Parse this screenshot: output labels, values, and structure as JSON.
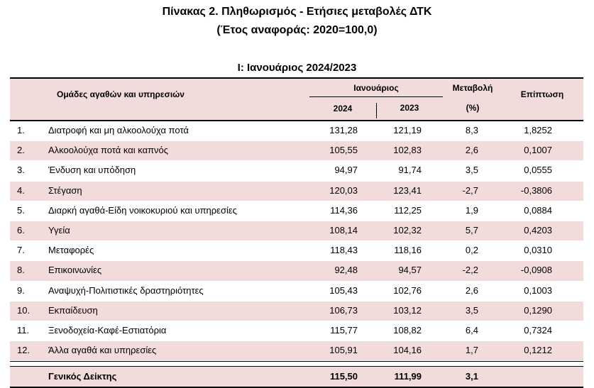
{
  "title": "Πίνακας 2. Πληθωρισμός - Ετήσιες μεταβολές ΔΤΚ",
  "subtitle": "(Έτος αναφοράς: 2020=100,0)",
  "section_title": "I: Ιανουάριος 2024/2023",
  "header": {
    "groups": "Ομάδες αγαθών και υπηρεσιών",
    "month": "Ιανουάριος",
    "year1": "2024",
    "year2": "2023",
    "change": "Μεταβολή",
    "change_unit": "(%)",
    "weight": "Επίπτωση"
  },
  "rows": [
    {
      "num": "1.",
      "name": "Διατροφή και μη αλκοολούχα ποτά",
      "v2024": "131,28",
      "v2023": "121,19",
      "change": "8,3",
      "weight": "1,8252"
    },
    {
      "num": "2.",
      "name": "Αλκοολούχα ποτά και καπνός",
      "v2024": "105,55",
      "v2023": "102,83",
      "change": "2,6",
      "weight": "0,1007"
    },
    {
      "num": "3.",
      "name": "Ένδυση και υπόδηση",
      "v2024": "94,97",
      "v2023": "91,74",
      "change": "3,5",
      "weight": "0,0555"
    },
    {
      "num": "4.",
      "name": "Στέγαση",
      "v2024": "120,03",
      "v2023": "123,41",
      "change": "-2,7",
      "weight": "-0,3806"
    },
    {
      "num": "5.",
      "name": "Διαρκή αγαθά-Είδη νοικοκυριού και υπηρεσίες",
      "v2024": "114,36",
      "v2023": "112,25",
      "change": "1,9",
      "weight": "0,0884"
    },
    {
      "num": "6.",
      "name": "Υγεία",
      "v2024": "108,14",
      "v2023": "102,32",
      "change": "5,7",
      "weight": "0,4203"
    },
    {
      "num": "7.",
      "name": "Μεταφορές",
      "v2024": "118,43",
      "v2023": "118,16",
      "change": "0,2",
      "weight": "0,0310"
    },
    {
      "num": "8.",
      "name": "Επικοινωνίες",
      "v2024": "92,48",
      "v2023": "94,57",
      "change": "-2,2",
      "weight": "-0,0908"
    },
    {
      "num": "9.",
      "name": "Αναψυχή-Πολιτιστικές δραστηριότητες",
      "v2024": "105,43",
      "v2023": "102,76",
      "change": "2,6",
      "weight": "0,1003"
    },
    {
      "num": "10.",
      "name": "Εκπαίδευση",
      "v2024": "106,73",
      "v2023": "103,12",
      "change": "3,5",
      "weight": "0,1290"
    },
    {
      "num": "11.",
      "name": "Ξενοδοχεία-Καφέ-Εστιατόρια",
      "v2024": "115,77",
      "v2023": "108,82",
      "change": "6,4",
      "weight": "0,7324"
    },
    {
      "num": "12.",
      "name": "Άλλα αγαθά και υπηρεσίες",
      "v2024": "105,91",
      "v2023": "104,16",
      "change": "1,7",
      "weight": "0,1212"
    }
  ],
  "total": {
    "name": "Γενικός Δείκτης",
    "v2024": "115,50",
    "v2023": "111,99",
    "change": "3,1"
  },
  "colors": {
    "row_alt": "#f2dcdb"
  }
}
